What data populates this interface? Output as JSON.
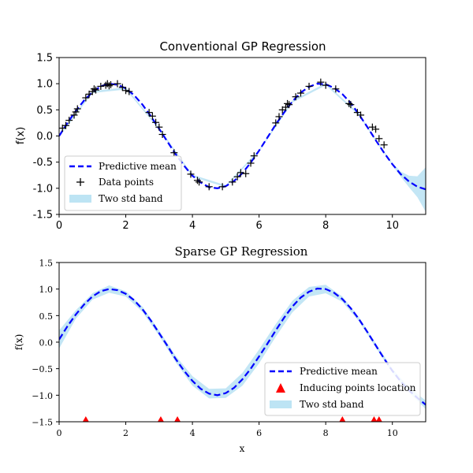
{
  "chart_data": [
    {
      "type": "line",
      "title": "Conventional GP Regression",
      "xlabel": "",
      "ylabel": "f(x)",
      "xlim": [
        0,
        11
      ],
      "ylim": [
        -1.5,
        1.5
      ],
      "xticks": [
        0,
        2,
        4,
        6,
        8,
        10
      ],
      "xtick_labels": [
        "0",
        "2",
        "4",
        "6",
        "8",
        "10"
      ],
      "yticks": [
        -1.5,
        -1.0,
        -0.5,
        0.0,
        0.5,
        1.0,
        1.5
      ],
      "ytick_labels": [
        "-1.5",
        "-1.0",
        "-0.5",
        "0.0",
        "0.5",
        "1.0",
        "1.5"
      ],
      "grid": false,
      "legend_position": "lower-left",
      "legend": [
        "Predictive mean",
        "Data points",
        "Two std band"
      ],
      "colors": {
        "mean": "#0000ff",
        "points": "#000000",
        "band": "#87ceeb"
      },
      "series": [
        {
          "name": "Predictive mean",
          "kind": "dashed-line",
          "x": [
            0.0,
            0.25,
            0.5,
            0.75,
            1.0,
            1.25,
            1.5,
            1.75,
            2.0,
            2.25,
            2.5,
            2.75,
            3.0,
            3.25,
            3.5,
            3.75,
            4.0,
            4.25,
            4.5,
            4.75,
            5.0,
            5.25,
            5.5,
            5.75,
            6.0,
            6.25,
            6.5,
            6.75,
            7.0,
            7.25,
            7.5,
            7.75,
            8.0,
            8.25,
            8.5,
            8.75,
            9.0,
            9.25,
            9.5,
            9.75,
            10.0,
            10.25,
            10.5,
            10.75,
            11.0
          ],
          "y": [
            0.0,
            0.25,
            0.48,
            0.68,
            0.84,
            0.95,
            1.0,
            0.98,
            0.91,
            0.78,
            0.6,
            0.38,
            0.14,
            -0.11,
            -0.35,
            -0.57,
            -0.76,
            -0.89,
            -0.98,
            -1.0,
            -0.96,
            -0.86,
            -0.71,
            -0.51,
            -0.28,
            -0.03,
            0.22,
            0.45,
            0.66,
            0.83,
            0.94,
            1.0,
            0.99,
            0.92,
            0.8,
            0.63,
            0.41,
            0.17,
            -0.08,
            -0.32,
            -0.54,
            -0.73,
            -0.87,
            -0.97,
            -1.02
          ]
        },
        {
          "name": "Two std band",
          "kind": "band",
          "x": [
            0.0,
            1.0,
            2.0,
            3.0,
            4.0,
            5.0,
            6.0,
            7.0,
            8.0,
            9.0,
            9.5,
            10.0,
            10.25,
            10.5,
            10.75,
            11.0
          ],
          "lower": [
            -0.02,
            0.82,
            0.89,
            0.12,
            -0.78,
            -0.98,
            -0.3,
            0.64,
            0.97,
            0.39,
            -0.1,
            -0.56,
            -0.78,
            -0.98,
            -1.17,
            -1.45
          ],
          "upper": [
            0.02,
            0.86,
            0.93,
            0.16,
            -0.74,
            -0.94,
            -0.26,
            0.68,
            1.01,
            0.43,
            -0.06,
            -0.52,
            -0.68,
            -0.76,
            -0.77,
            -0.6
          ]
        },
        {
          "name": "Data points",
          "kind": "plus-markers",
          "x": [
            0.1,
            0.2,
            0.3,
            0.45,
            0.5,
            0.55,
            0.8,
            0.9,
            1.0,
            1.05,
            1.1,
            1.25,
            1.4,
            1.45,
            1.5,
            1.55,
            1.75,
            1.9,
            2.0,
            2.1,
            2.7,
            2.8,
            2.9,
            3.0,
            3.1,
            3.45,
            3.95,
            4.15,
            4.2,
            4.5,
            4.9,
            5.2,
            5.35,
            5.45,
            5.6,
            5.75,
            5.85,
            6.5,
            6.6,
            6.7,
            6.8,
            6.85,
            6.9,
            7.1,
            7.25,
            7.5,
            7.85,
            8.0,
            8.3,
            8.7,
            8.75,
            8.95,
            9.05,
            9.4,
            9.5,
            9.6,
            9.75
          ],
          "y": [
            0.15,
            0.2,
            0.3,
            0.4,
            0.46,
            0.52,
            0.73,
            0.8,
            0.85,
            0.9,
            0.88,
            0.95,
            0.97,
            1.0,
            0.96,
            0.98,
            1.0,
            0.93,
            0.87,
            0.85,
            0.45,
            0.38,
            0.26,
            0.17,
            0.03,
            -0.32,
            -0.73,
            -0.85,
            -0.88,
            -0.97,
            -0.97,
            -0.88,
            -0.78,
            -0.7,
            -0.72,
            -0.52,
            -0.38,
            0.25,
            0.37,
            0.5,
            0.55,
            0.62,
            0.6,
            0.75,
            0.82,
            0.95,
            1.03,
            0.97,
            0.9,
            0.62,
            0.6,
            0.45,
            0.4,
            0.17,
            0.13,
            -0.05,
            -0.17
          ]
        }
      ]
    },
    {
      "type": "line",
      "title": "Sparse GP Regression",
      "xlabel": "x",
      "ylabel": "f(x)",
      "xlim": [
        0,
        11
      ],
      "ylim": [
        -1.5,
        1.5
      ],
      "xticks": [
        0,
        2,
        4,
        6,
        8,
        10
      ],
      "xtick_labels": [
        "0",
        "2",
        "4",
        "6",
        "8",
        "10"
      ],
      "yticks": [
        -1.5,
        -1.0,
        -0.5,
        0.0,
        0.5,
        1.0,
        1.5
      ],
      "ytick_labels": [
        "−1.5",
        "−1.0",
        "−0.5",
        "0.0",
        "0.5",
        "1.0",
        "1.5"
      ],
      "grid": false,
      "legend_position": "lower-right",
      "legend": [
        "Predictive mean",
        "Inducing points location",
        "Two std band"
      ],
      "colors": {
        "mean": "#0000ff",
        "points": "#ff0000",
        "band": "#87ceeb"
      },
      "series": [
        {
          "name": "Predictive mean",
          "kind": "dashed-line",
          "x": [
            0.0,
            0.25,
            0.5,
            0.75,
            1.0,
            1.25,
            1.5,
            1.75,
            2.0,
            2.25,
            2.5,
            2.75,
            3.0,
            3.25,
            3.5,
            3.75,
            4.0,
            4.25,
            4.5,
            4.75,
            5.0,
            5.25,
            5.5,
            5.75,
            6.0,
            6.25,
            6.5,
            6.75,
            7.0,
            7.25,
            7.5,
            7.75,
            8.0,
            8.25,
            8.5,
            8.75,
            9.0,
            9.25,
            9.5,
            9.75,
            10.0,
            10.25,
            10.5,
            10.75,
            11.0
          ],
          "y": [
            0.05,
            0.3,
            0.52,
            0.71,
            0.86,
            0.96,
            1.0,
            0.98,
            0.91,
            0.79,
            0.62,
            0.41,
            0.17,
            -0.07,
            -0.32,
            -0.54,
            -0.73,
            -0.88,
            -0.97,
            -1.0,
            -0.96,
            -0.86,
            -0.7,
            -0.5,
            -0.27,
            -0.03,
            0.22,
            0.46,
            0.67,
            0.84,
            0.95,
            1.01,
            1.0,
            0.93,
            0.81,
            0.64,
            0.43,
            0.19,
            -0.06,
            -0.31,
            -0.54,
            -0.74,
            -0.91,
            -1.05,
            -1.18
          ]
        },
        {
          "name": "Two std band",
          "kind": "band",
          "x": [
            0.0,
            0.5,
            1.0,
            1.5,
            2.0,
            2.5,
            3.0,
            3.5,
            4.0,
            4.5,
            5.0,
            5.5,
            6.0,
            6.5,
            7.0,
            7.5,
            8.0,
            8.5,
            9.0,
            9.5,
            10.0,
            10.5,
            11.0
          ],
          "lower": [
            -0.12,
            0.44,
            0.8,
            0.93,
            0.86,
            0.57,
            0.12,
            -0.38,
            -0.82,
            -1.06,
            -1.05,
            -0.82,
            -0.4,
            0.1,
            0.56,
            0.86,
            0.92,
            0.76,
            0.39,
            -0.1,
            -0.58,
            -0.95,
            -1.26
          ],
          "upper": [
            0.22,
            0.6,
            0.92,
            1.07,
            0.96,
            0.67,
            0.22,
            -0.26,
            -0.64,
            -0.88,
            -0.87,
            -0.58,
            -0.14,
            0.34,
            0.78,
            1.04,
            1.08,
            0.86,
            0.47,
            -0.02,
            -0.5,
            -0.85,
            -1.1
          ]
        },
        {
          "name": "Inducing points location",
          "kind": "triangle-markers",
          "x": [
            0.8,
            3.05,
            3.55,
            8.5,
            9.45,
            9.6
          ],
          "y": [
            -1.5,
            -1.5,
            -1.5,
            -1.5,
            -1.5,
            -1.5
          ]
        }
      ]
    }
  ]
}
